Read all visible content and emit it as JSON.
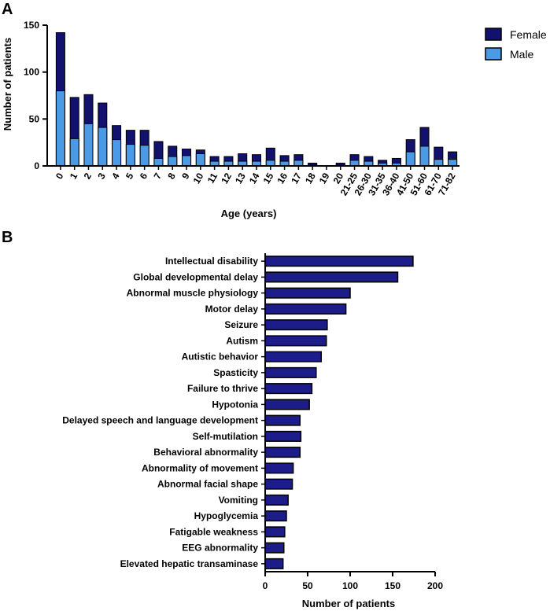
{
  "colors": {
    "female": "#12126e",
    "male": "#4a9ae6",
    "barB": "#1c1c8a",
    "stroke": "#000000"
  },
  "chart_data": [
    {
      "panel": "A",
      "type": "bar",
      "stacked": true,
      "xlabel": "Age (years)",
      "ylabel": "Number of patients",
      "ylim": [
        0,
        150
      ],
      "yticks": [
        0,
        50,
        100,
        150
      ],
      "legend_position": "top-right",
      "categories": [
        "0",
        "1",
        "2",
        "3",
        "4",
        "5",
        "6",
        "7",
        "8",
        "9",
        "10",
        "11",
        "12",
        "13",
        "14",
        "15",
        "16",
        "17",
        "18",
        "19",
        "20",
        "21-25",
        "26-30",
        "31-35",
        "36-40",
        "41-50",
        "51-60",
        "61-70",
        "71-82"
      ],
      "series": [
        {
          "name": "Female",
          "totals": [
            142,
            73,
            76,
            67,
            43,
            38,
            38,
            26,
            21,
            18,
            17,
            10,
            10,
            13,
            12,
            19,
            11,
            12,
            3,
            0,
            3,
            12,
            10,
            6,
            8,
            28,
            41,
            20,
            15
          ]
        },
        {
          "name": "Male",
          "values": [
            80,
            29,
            45,
            41,
            28,
            23,
            22,
            8,
            10,
            11,
            13,
            5,
            5,
            5,
            5,
            6,
            5,
            6,
            1,
            0,
            1,
            6,
            5,
            3,
            3,
            15,
            21,
            7,
            7
          ]
        }
      ]
    },
    {
      "panel": "B",
      "type": "bar",
      "orientation": "horizontal",
      "xlabel": "Number of patients",
      "xlim": [
        0,
        200
      ],
      "xticks": [
        0,
        50,
        100,
        150,
        200
      ],
      "categories": [
        "Intellectual disability",
        "Global developmental delay",
        "Abnormal muscle physiology",
        "Motor delay",
        "Seizure",
        "Autism",
        "Autistic behavior",
        "Spasticity",
        "Failure to thrive",
        "Hypotonia",
        "Delayed speech and language development",
        "Self-mutilation",
        "Behavioral abnormality",
        "Abnormality of movement",
        "Abnormal facial shape",
        "Vomiting",
        "Hypoglycemia",
        "Fatigable weakness",
        "EEG abnormality",
        "Elevated hepatic transaminase"
      ],
      "values": [
        174,
        156,
        100,
        95,
        73,
        72,
        66,
        60,
        55,
        52,
        41,
        42,
        41,
        33,
        32,
        27,
        25,
        23,
        22,
        21
      ]
    }
  ]
}
